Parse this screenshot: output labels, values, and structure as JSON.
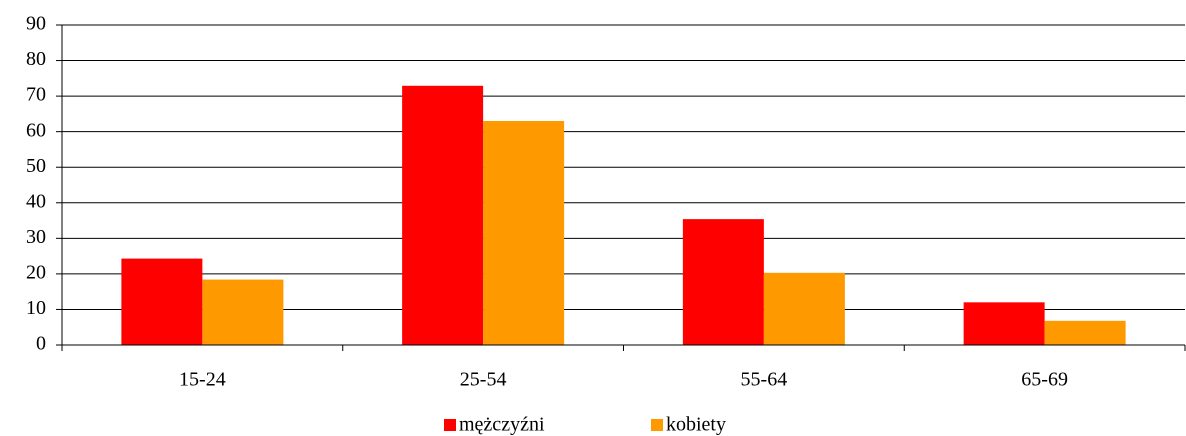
{
  "chart_data": {
    "type": "bar",
    "categories": [
      "15-24",
      "25-54",
      "55-64",
      "65-69"
    ],
    "series": [
      {
        "name": "mężczyźni",
        "color": "#ff0000",
        "values": [
          24.3,
          72.9,
          35.4,
          12.0
        ]
      },
      {
        "name": "kobiety",
        "color": "#ff9900",
        "values": [
          18.4,
          63.0,
          20.3,
          6.8
        ]
      }
    ],
    "ylim": [
      0,
      90
    ],
    "yticks": [
      0,
      10,
      20,
      30,
      40,
      50,
      60,
      70,
      80,
      90
    ],
    "grid": true,
    "legend": "bottom"
  }
}
